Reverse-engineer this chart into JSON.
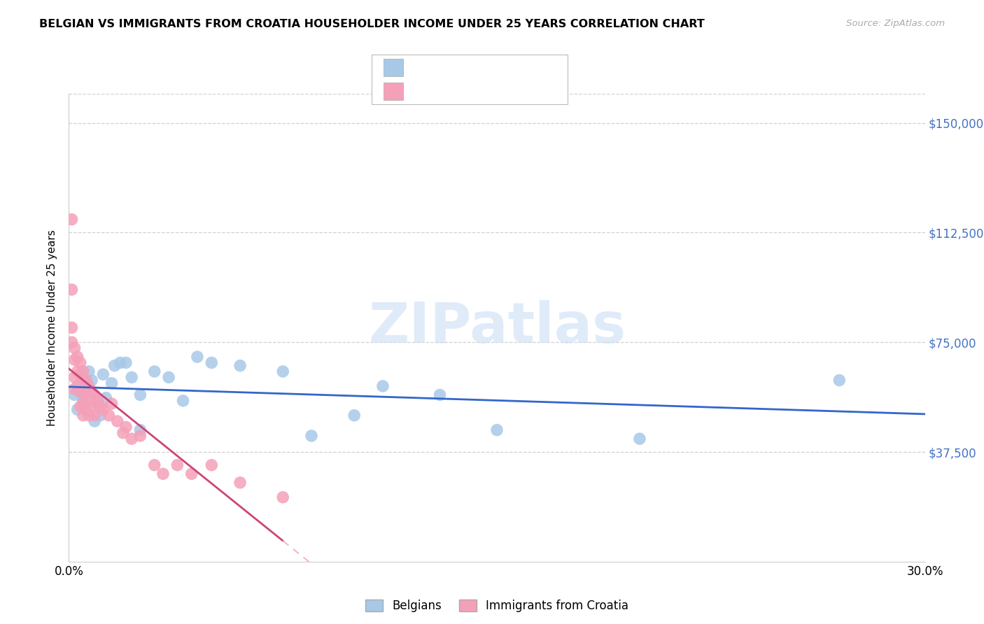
{
  "title": "BELGIAN VS IMMIGRANTS FROM CROATIA HOUSEHOLDER INCOME UNDER 25 YEARS CORRELATION CHART",
  "source": "Source: ZipAtlas.com",
  "ylabel": "Householder Income Under 25 years",
  "ytick_values": [
    37500,
    75000,
    112500,
    150000
  ],
  "ytick_labels": [
    "$37,500",
    "$75,000",
    "$112,500",
    "$150,000"
  ],
  "ylim": [
    0,
    160000
  ],
  "xlim": [
    0.0,
    0.3
  ],
  "xtick_positions": [
    0.0,
    0.05,
    0.1,
    0.15,
    0.2,
    0.25,
    0.3
  ],
  "xtick_labels": [
    "0.0%",
    "",
    "",
    "",
    "",
    "",
    "30.0%"
  ],
  "color_belgian": "#a8c8e8",
  "color_croatia": "#f4a0b8",
  "color_trendline_belgian": "#3366cc",
  "color_trendline_croatia_solid": "#cc4477",
  "color_trendline_croatia_dash": "#f0b8cc",
  "color_grid": "#d0d0d0",
  "color_ytick": "#4472c4",
  "watermark_color": "#ccdff5",
  "belgians_x": [
    0.002,
    0.003,
    0.004,
    0.005,
    0.006,
    0.007,
    0.008,
    0.009,
    0.01,
    0.011,
    0.012,
    0.013,
    0.015,
    0.016,
    0.018,
    0.02,
    0.022,
    0.025,
    0.03,
    0.035,
    0.045,
    0.05,
    0.06,
    0.075,
    0.085,
    0.1,
    0.11,
    0.13,
    0.15,
    0.2,
    0.27,
    0.025,
    0.04
  ],
  "belgians_y": [
    57000,
    52000,
    58000,
    55000,
    60000,
    65000,
    62000,
    48000,
    54000,
    50000,
    64000,
    56000,
    61000,
    67000,
    68000,
    68000,
    63000,
    57000,
    65000,
    63000,
    70000,
    68000,
    67000,
    65000,
    43000,
    50000,
    60000,
    57000,
    45000,
    42000,
    62000,
    45000,
    55000
  ],
  "croatia_x": [
    0.001,
    0.001,
    0.001,
    0.001,
    0.002,
    0.002,
    0.002,
    0.002,
    0.003,
    0.003,
    0.003,
    0.004,
    0.004,
    0.004,
    0.004,
    0.005,
    0.005,
    0.005,
    0.005,
    0.005,
    0.006,
    0.006,
    0.006,
    0.007,
    0.007,
    0.007,
    0.008,
    0.008,
    0.009,
    0.009,
    0.01,
    0.011,
    0.012,
    0.014,
    0.015,
    0.017,
    0.019,
    0.02,
    0.022,
    0.025,
    0.03,
    0.033,
    0.038,
    0.043,
    0.05,
    0.06,
    0.075
  ],
  "croatia_y": [
    117000,
    93000,
    80000,
    75000,
    73000,
    69000,
    63000,
    59000,
    70000,
    65000,
    60000,
    68000,
    64000,
    58000,
    53000,
    65000,
    62000,
    58000,
    54000,
    50000,
    62000,
    58000,
    52000,
    60000,
    55000,
    50000,
    58000,
    53000,
    57000,
    50000,
    55000,
    53000,
    52000,
    50000,
    54000,
    48000,
    44000,
    46000,
    42000,
    43000,
    33000,
    30000,
    33000,
    30000,
    33000,
    27000,
    22000
  ]
}
